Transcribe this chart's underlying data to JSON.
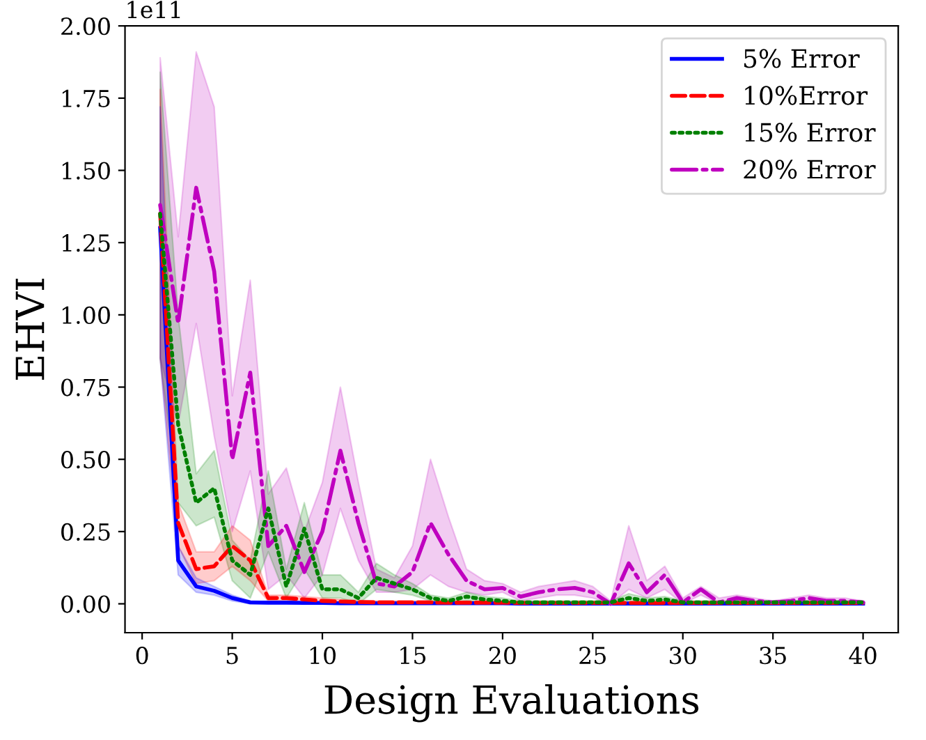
{
  "chart_data": {
    "type": "line",
    "xlabel": "Design Evaluations",
    "ylabel": "EHVI",
    "x": [
      1,
      2,
      3,
      4,
      5,
      6,
      7,
      8,
      9,
      10,
      11,
      12,
      13,
      14,
      15,
      16,
      17,
      18,
      19,
      20,
      21,
      22,
      23,
      24,
      25,
      26,
      27,
      28,
      29,
      30,
      31,
      32,
      33,
      34,
      35,
      36,
      37,
      38,
      39,
      40
    ],
    "xlim": [
      -0.95,
      41.95
    ],
    "ylim": [
      -0.1,
      2.0
    ],
    "xticks": [
      0,
      5,
      10,
      15,
      20,
      25,
      30,
      35,
      40
    ],
    "yticks": [
      {
        "value": 0,
        "label": "0.00"
      },
      {
        "value": 0.25,
        "label": "0.25"
      },
      {
        "value": 0.5,
        "label": "0.50"
      },
      {
        "value": 0.75,
        "label": "0.75"
      },
      {
        "value": 1.0,
        "label": "1.00"
      },
      {
        "value": 1.25,
        "label": "1.25"
      },
      {
        "value": 1.5,
        "label": "1.50"
      },
      {
        "value": 1.75,
        "label": "1.75"
      },
      {
        "value": 2.0,
        "label": "2.00"
      }
    ],
    "annotations": [
      "1e11"
    ],
    "legend": "top right",
    "grid": false,
    "series": [
      {
        "name": "5% Error",
        "color": "#0000ff",
        "line_style": "solid",
        "values": [
          1.3,
          0.15,
          0.06,
          0.045,
          0.02,
          0.005,
          0.004,
          0.004,
          0.003,
          0.003,
          0.002,
          0.002,
          0.002,
          0.002,
          0.002,
          0.002,
          0.002,
          0.002,
          0.002,
          0.002,
          0.001,
          0.001,
          0.001,
          0.001,
          0.001,
          0.001,
          0.001,
          0.001,
          0.001,
          0.001,
          0.001,
          0.001,
          0.001,
          0.001,
          0.001,
          0.001,
          0.001,
          0.001,
          0.001,
          0.001
        ],
        "lower": [
          0.85,
          0.1,
          0.04,
          0.03,
          0.01,
          0,
          0,
          0,
          0,
          0,
          0,
          0,
          0,
          0,
          0,
          0,
          0,
          0,
          0,
          0,
          0,
          0,
          0,
          0,
          0,
          0,
          0,
          0,
          0,
          0,
          0,
          0,
          0,
          0,
          0,
          0,
          0,
          0,
          0,
          0
        ],
        "upper": [
          1.72,
          0.2,
          0.09,
          0.06,
          0.03,
          0.01,
          0.007,
          0.007,
          0.006,
          0.006,
          0.005,
          0.005,
          0.005,
          0.005,
          0.005,
          0.005,
          0.005,
          0.005,
          0.005,
          0.005,
          0.004,
          0.004,
          0.004,
          0.004,
          0.004,
          0.004,
          0.004,
          0.004,
          0.004,
          0.004,
          0.004,
          0.004,
          0.004,
          0.004,
          0.004,
          0.004,
          0.004,
          0.004,
          0.004,
          0.004
        ]
      },
      {
        "name": "10%Error",
        "color": "#ff0000",
        "line_style": "dashed",
        "values": [
          1.35,
          0.28,
          0.12,
          0.13,
          0.2,
          0.15,
          0.02,
          0.02,
          0.015,
          0.01,
          0.008,
          0.006,
          0.005,
          0.005,
          0.005,
          0.005,
          0.004,
          0.004,
          0.004,
          0.004,
          0.003,
          0.003,
          0.003,
          0.003,
          0.003,
          0.003,
          0.003,
          0.003,
          0.003,
          0.003,
          0.003,
          0.003,
          0.003,
          0.003,
          0.003,
          0.003,
          0.003,
          0.003,
          0.003,
          0.003
        ],
        "lower": [
          0.85,
          0.2,
          0.07,
          0.08,
          0.13,
          0.08,
          0.01,
          0.01,
          0.005,
          0.003,
          0.002,
          0.001,
          0.001,
          0.001,
          0.001,
          0.001,
          0.001,
          0.001,
          0.001,
          0.001,
          0,
          0,
          0,
          0,
          0,
          0,
          0,
          0,
          0,
          0,
          0,
          0,
          0,
          0,
          0,
          0,
          0,
          0,
          0,
          0
        ],
        "upper": [
          1.78,
          0.35,
          0.18,
          0.18,
          0.27,
          0.22,
          0.03,
          0.03,
          0.025,
          0.02,
          0.015,
          0.012,
          0.01,
          0.01,
          0.01,
          0.01,
          0.008,
          0.008,
          0.008,
          0.008,
          0.006,
          0.006,
          0.006,
          0.006,
          0.006,
          0.006,
          0.006,
          0.006,
          0.006,
          0.006,
          0.006,
          0.006,
          0.006,
          0.006,
          0.006,
          0.006,
          0.006,
          0.006,
          0.006,
          0.006
        ]
      },
      {
        "name": "15% Error",
        "color": "#008000",
        "line_style": "dotted",
        "values": [
          1.35,
          0.62,
          0.35,
          0.4,
          0.15,
          0.1,
          0.33,
          0.06,
          0.26,
          0.05,
          0.05,
          0.02,
          0.09,
          0.07,
          0.05,
          0.02,
          0.01,
          0.025,
          0.015,
          0.01,
          0.005,
          0.005,
          0.005,
          0.005,
          0.005,
          0.005,
          0.02,
          0.01,
          0.015,
          0.005,
          0.005,
          0.005,
          0.005,
          0.005,
          0.005,
          0.005,
          0.005,
          0.005,
          0.005,
          0.005
        ],
        "lower": [
          0.85,
          0.35,
          0.27,
          0.3,
          0.08,
          0.02,
          0.18,
          0.02,
          0.12,
          0.02,
          0.02,
          0,
          0.05,
          0.04,
          0.03,
          0.01,
          0.003,
          0.01,
          0.005,
          0.003,
          0,
          0,
          0,
          0,
          0,
          0,
          0.005,
          0.002,
          0.005,
          0,
          0,
          0,
          0,
          0,
          0,
          0,
          0,
          0,
          0,
          0
        ],
        "upper": [
          1.84,
          1.0,
          0.45,
          0.53,
          0.22,
          0.15,
          0.46,
          0.12,
          0.35,
          0.1,
          0.1,
          0.04,
          0.14,
          0.1,
          0.07,
          0.03,
          0.02,
          0.04,
          0.025,
          0.02,
          0.01,
          0.01,
          0.01,
          0.01,
          0.01,
          0.01,
          0.035,
          0.02,
          0.025,
          0.01,
          0.01,
          0.01,
          0.01,
          0.01,
          0.01,
          0.01,
          0.01,
          0.01,
          0.01,
          0.01
        ]
      },
      {
        "name": "20% Error",
        "color": "#bf00bf",
        "line_style": "dashdot",
        "values": [
          1.38,
          0.97,
          1.44,
          1.15,
          0.5,
          0.8,
          0.2,
          0.27,
          0.11,
          0.25,
          0.53,
          0.28,
          0.07,
          0.06,
          0.11,
          0.28,
          0.17,
          0.08,
          0.05,
          0.055,
          0.025,
          0.04,
          0.05,
          0.055,
          0.04,
          0.0,
          0.14,
          0.04,
          0.1,
          0.005,
          0.05,
          0.005,
          0.02,
          0.01,
          0.005,
          0.01,
          0.02,
          0.01,
          0.01,
          0.005
        ],
        "lower": [
          0.85,
          0.62,
          0.97,
          0.58,
          0.25,
          0.46,
          0.05,
          0.1,
          0.02,
          0.1,
          0.33,
          0.15,
          0.04,
          0.04,
          0.05,
          0.1,
          0.06,
          0.04,
          0.03,
          0.04,
          0.01,
          0.02,
          0.03,
          0.03,
          0.02,
          0,
          0.05,
          0.02,
          0.05,
          0,
          0.03,
          0,
          0.01,
          0,
          0,
          0,
          0.01,
          0,
          0,
          0
        ],
        "upper": [
          1.89,
          1.27,
          1.91,
          1.72,
          0.72,
          1.12,
          0.38,
          0.47,
          0.25,
          0.42,
          0.75,
          0.42,
          0.12,
          0.09,
          0.2,
          0.5,
          0.3,
          0.12,
          0.08,
          0.07,
          0.04,
          0.06,
          0.07,
          0.08,
          0.06,
          0.01,
          0.27,
          0.08,
          0.13,
          0.02,
          0.06,
          0.02,
          0.03,
          0.02,
          0.01,
          0.02,
          0.03,
          0.02,
          0.02,
          0.01
        ]
      }
    ]
  }
}
